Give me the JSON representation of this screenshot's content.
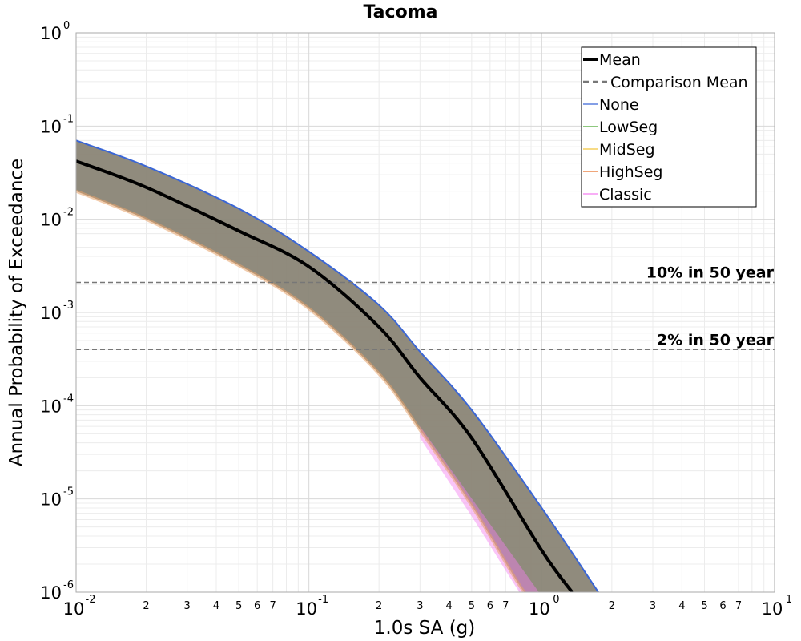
{
  "chart_data": {
    "type": "line",
    "title": "Tacoma",
    "xlabel": "1.0s SA (g)",
    "ylabel": "Annual Probability of Exceedance",
    "xscale": "log",
    "yscale": "log",
    "xlim": [
      0.01,
      10
    ],
    "ylim": [
      1e-06,
      1
    ],
    "grid": true,
    "legend_position": "top-right",
    "x_major_ticks": [
      {
        "base": "10",
        "exp": "-2",
        "value": 0.01
      },
      {
        "base": "10",
        "exp": "-1",
        "value": 0.1
      },
      {
        "base": "10",
        "exp": "0",
        "value": 1
      },
      {
        "base": "10",
        "exp": "1",
        "value": 10
      }
    ],
    "x_minor_tick_labels": [
      "2",
      "3",
      "4",
      "5",
      "6",
      "7"
    ],
    "y_major_ticks": [
      {
        "base": "10",
        "exp": "0",
        "value": 1
      },
      {
        "base": "10",
        "exp": "-1",
        "value": 0.1
      },
      {
        "base": "10",
        "exp": "-2",
        "value": 0.01
      },
      {
        "base": "10",
        "exp": "-3",
        "value": 0.001
      },
      {
        "base": "10",
        "exp": "-4",
        "value": 0.0001
      },
      {
        "base": "10",
        "exp": "-5",
        "value": 1e-05
      },
      {
        "base": "10",
        "exp": "-6",
        "value": 1e-06
      }
    ],
    "reference_lines": [
      {
        "label": "10% in 50 year",
        "y": 0.0021
      },
      {
        "label": "2% in 50 year",
        "y": 0.0004
      }
    ],
    "legend": [
      {
        "label": "Mean",
        "color": "#000000",
        "style": "solid-thick"
      },
      {
        "label": "Comparison Mean",
        "color": "#777777",
        "style": "dashed"
      },
      {
        "label": "None",
        "color": "#3a66d6",
        "style": "solid"
      },
      {
        "label": "LowSeg",
        "color": "#4aa832",
        "style": "solid"
      },
      {
        "label": "MidSeg",
        "color": "#f2c53d",
        "style": "solid"
      },
      {
        "label": "HighSeg",
        "color": "#e8702a",
        "style": "solid"
      },
      {
        "label": "Classic",
        "color": "#f47ef0",
        "style": "solid"
      }
    ],
    "series": [
      {
        "name": "Mean",
        "x": [
          0.01,
          0.02,
          0.05,
          0.1,
          0.2,
          0.3,
          0.5,
          1.0,
          1.35
        ],
        "y": [
          0.042,
          0.022,
          0.0075,
          0.0031,
          0.0007,
          0.0002,
          4.5e-05,
          2.8e-06,
          1e-06
        ]
      }
    ],
    "band_upper": {
      "x": [
        0.01,
        0.02,
        0.05,
        0.1,
        0.2,
        0.3,
        0.5,
        1.0,
        1.75
      ],
      "y": [
        0.07,
        0.037,
        0.013,
        0.0045,
        0.0012,
        0.00038,
        9e-05,
        8e-06,
        1e-06
      ]
    },
    "band_lower": {
      "x": [
        0.01,
        0.02,
        0.05,
        0.1,
        0.2,
        0.3,
        0.5,
        0.8,
        1.0
      ],
      "y": [
        0.02,
        0.01,
        0.0032,
        0.0011,
        0.00022,
        5.5e-05,
        8.5e-06,
        1.2e-06,
        6e-07
      ]
    },
    "classic_lower": {
      "x": [
        0.3,
        0.5,
        0.7,
        0.85
      ],
      "y": [
        4.5e-05,
        6.5e-06,
        1.7e-06,
        8e-07
      ]
    },
    "colors": {
      "band_fill": "#8a8576",
      "band_edge_none": "#3a66d6",
      "band_lower_edge": "#e6a26a",
      "classic": "#f47ef0",
      "reference_line": "#777777"
    }
  }
}
